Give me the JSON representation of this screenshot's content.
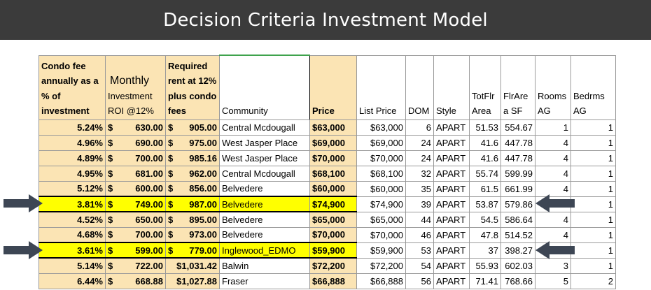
{
  "title": "Decision Criteria Investment Model",
  "headers": [
    "Condo fee annually as a % of investment",
    "Monthly",
    "Investment ROI @12%",
    "Required rent at 12% plus condo fees",
    "Community",
    "Price",
    "List Price",
    "DOM",
    "Style",
    "TotFlr Area",
    "FlrAre a SF",
    "Rooms AG",
    "Bedrms AG"
  ],
  "header_lines": {
    "condo": [
      "Condo fee",
      "annually as a",
      "% of",
      "investment"
    ],
    "monthly_big": "Monthly",
    "roi": [
      "Investment",
      "ROI @12%"
    ],
    "rent": [
      "Required",
      "rent at 12%",
      "plus condo",
      "fees"
    ],
    "community": "Community",
    "price": "Price",
    "list_price": "List Price",
    "dom": "DOM",
    "style": "Style",
    "totflr": [
      "TotFlr",
      "Area"
    ],
    "flrare": [
      "FlrAre",
      "a SF"
    ],
    "rooms": [
      "Rooms",
      "AG"
    ],
    "bedrms": [
      "Bedrms",
      "AG"
    ]
  },
  "rows": [
    {
      "pct": "5.24%",
      "roi": "630.00",
      "rent": "905.00",
      "community": "Central Mcdougall",
      "price": "$63,000",
      "list": "$63,000",
      "dom": "6",
      "style": "APART",
      "totflr": "51.53",
      "flr_sf": "554.67",
      "rooms": "1",
      "bedrms": "1",
      "highlight": false
    },
    {
      "pct": "4.96%",
      "roi": "690.00",
      "rent": "975.00",
      "community": "West Jasper Place",
      "price": "$69,000",
      "list": "$69,000",
      "dom": "24",
      "style": "APART",
      "totflr": "41.6",
      "flr_sf": "447.78",
      "rooms": "4",
      "bedrms": "1",
      "highlight": false
    },
    {
      "pct": "4.89%",
      "roi": "700.00",
      "rent": "985.16",
      "community": "West Jasper Place",
      "price": "$70,000",
      "list": "$70,000",
      "dom": "24",
      "style": "APART",
      "totflr": "41.6",
      "flr_sf": "447.78",
      "rooms": "4",
      "bedrms": "1",
      "highlight": false
    },
    {
      "pct": "4.95%",
      "roi": "681.00",
      "rent": "962.00",
      "community": "Central Mcdougall",
      "price": "$68,100",
      "list": "$68,100",
      "dom": "32",
      "style": "APART",
      "totflr": "55.74",
      "flr_sf": "599.99",
      "rooms": "4",
      "bedrms": "1",
      "highlight": false
    },
    {
      "pct": "5.12%",
      "roi": "600.00",
      "rent": "856.00",
      "community": "Belvedere",
      "price": "$60,000",
      "list": "$60,000",
      "dom": "35",
      "style": "APART",
      "totflr": "61.5",
      "flr_sf": "661.99",
      "rooms": "4",
      "bedrms": "1",
      "highlight": false
    },
    {
      "pct": "3.81%",
      "roi": "749.00",
      "rent": "987.00",
      "community": "Belvedere",
      "price": "$74,900",
      "list": "$74,900",
      "dom": "39",
      "style": "APART",
      "totflr": "53.87",
      "flr_sf": "579.86",
      "rooms": "",
      "bedrms": "1",
      "highlight": true
    },
    {
      "pct": "4.52%",
      "roi": "650.00",
      "rent": "895.00",
      "community": "Belvedere",
      "price": "$65,000",
      "list": "$65,000",
      "dom": "44",
      "style": "APART",
      "totflr": "54.5",
      "flr_sf": "586.64",
      "rooms": "4",
      "bedrms": "1",
      "highlight": false
    },
    {
      "pct": "4.68%",
      "roi": "700.00",
      "rent": "973.00",
      "community": "Belvedere",
      "price": "$70,000",
      "list": "$70,000",
      "dom": "46",
      "style": "APART",
      "totflr": "47.8",
      "flr_sf": "514.52",
      "rooms": "4",
      "bedrms": "1",
      "highlight": false
    },
    {
      "pct": "3.61%",
      "roi": "599.00",
      "rent": "779.00",
      "community": "Inglewood_EDMO",
      "price": "$59,900",
      "list": "$59,900",
      "dom": "53",
      "style": "APART",
      "totflr": "37",
      "flr_sf": "398.27",
      "rooms": "",
      "bedrms": "1",
      "highlight": true
    },
    {
      "pct": "5.14%",
      "roi": "722.00",
      "rent": "$1,031.42",
      "community": "Balwin",
      "price": "$72,200",
      "list": "$72,200",
      "dom": "54",
      "style": "APART",
      "totflr": "55.93",
      "flr_sf": "602.03",
      "rooms": "3",
      "bedrms": "1",
      "highlight": false
    },
    {
      "pct": "6.44%",
      "roi": "668.88",
      "rent": "$1,027.88",
      "community": "Fraser",
      "price": "$66,888",
      "list": "$66,888",
      "dom": "56",
      "style": "APART",
      "totflr": "71.41",
      "flr_sf": "768.66",
      "rooms": "5",
      "bedrms": "2",
      "highlight": false
    }
  ],
  "currency_symbol": "$",
  "arrow_color": "#3d4654",
  "highlight_color": "#ffff00",
  "header_fill_color": "#fbe4b4"
}
